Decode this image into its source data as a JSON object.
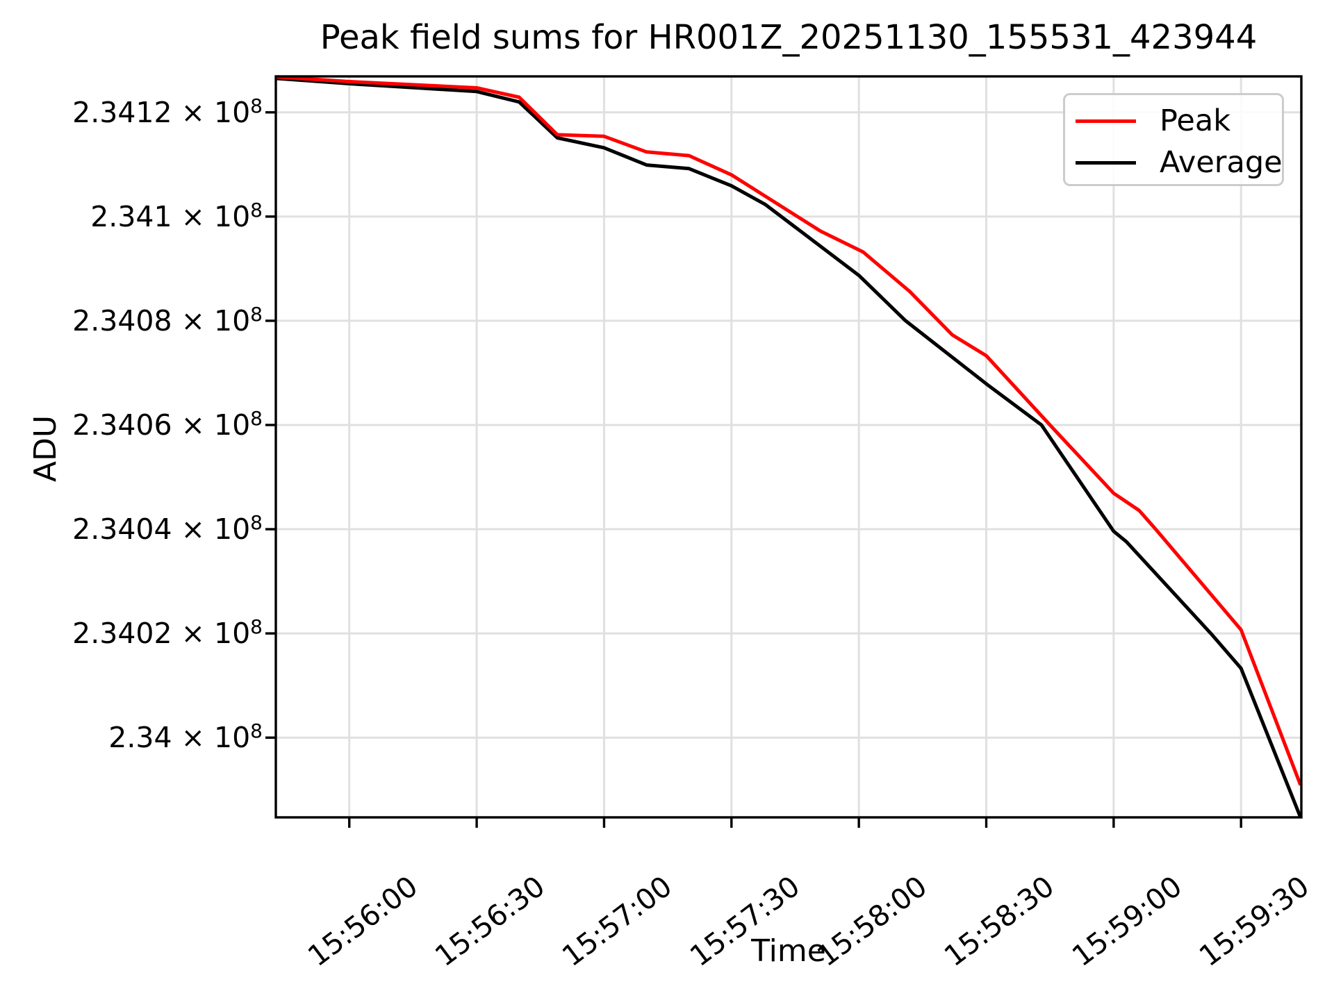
{
  "chart_data": {
    "type": "line",
    "title": "Peak field sums for HR001Z_20251130_155531_423944",
    "xlabel": "Time",
    "ylabel": "ADU",
    "grid": true,
    "legend_position": "upper right",
    "x_axis": {
      "xlim": [
        "15:55:42.7",
        "15:59:44.2"
      ],
      "ticks": [
        "15:56:00",
        "15:56:30",
        "15:57:00",
        "15:57:30",
        "15:58:00",
        "15:58:30",
        "15:59:00",
        "15:59:30"
      ]
    },
    "y_axis": {
      "ylim": [
        233984700,
        234126900
      ],
      "tick_times_symbol": " × 10",
      "tick_exponent": "8",
      "ticks": [
        {
          "value": 234120000,
          "mantissa": "2.3412"
        },
        {
          "value": 234100000,
          "mantissa": "2.341"
        },
        {
          "value": 234080000,
          "mantissa": "2.3408"
        },
        {
          "value": 234060000,
          "mantissa": "2.3406"
        },
        {
          "value": 234040000,
          "mantissa": "2.3404"
        },
        {
          "value": 234020000,
          "mantissa": "2.3402"
        },
        {
          "value": 234000000,
          "mantissa": "2.34"
        }
      ]
    },
    "series": [
      {
        "name": "Peak",
        "color": "#ff0000",
        "points": [
          [
            "15:55:43",
            234126800
          ],
          [
            "15:56:00",
            234125900
          ],
          [
            "15:56:30",
            234124700
          ],
          [
            "15:56:40",
            234122900
          ],
          [
            "15:56:49",
            234115700
          ],
          [
            "15:57:00",
            234115400
          ],
          [
            "15:57:10",
            234112400
          ],
          [
            "15:57:20",
            234111700
          ],
          [
            "15:57:30",
            234108000
          ],
          [
            "15:57:51",
            234097200
          ],
          [
            "15:58:01",
            234093200
          ],
          [
            "15:58:12",
            234085600
          ],
          [
            "15:58:22",
            234077300
          ],
          [
            "15:58:30",
            234073300
          ],
          [
            "15:58:45",
            234060000
          ],
          [
            "15:59:00",
            234046900
          ],
          [
            "15:59:06",
            234043600
          ],
          [
            "15:59:10",
            234039900
          ],
          [
            "15:59:30",
            234020700
          ],
          [
            "15:59:44",
            233990900
          ]
        ]
      },
      {
        "name": "Average",
        "color": "#000000",
        "points": [
          [
            "15:55:43",
            234126500
          ],
          [
            "15:56:00",
            234125500
          ],
          [
            "15:56:30",
            234124000
          ],
          [
            "15:56:40",
            234122000
          ],
          [
            "15:56:49",
            234115100
          ],
          [
            "15:57:00",
            234113200
          ],
          [
            "15:57:10",
            234109900
          ],
          [
            "15:57:20",
            234109200
          ],
          [
            "15:57:30",
            234105900
          ],
          [
            "15:57:38",
            234102300
          ],
          [
            "15:58:00",
            234088700
          ],
          [
            "15:58:11",
            234080000
          ],
          [
            "15:58:30",
            234067900
          ],
          [
            "15:58:43",
            234060000
          ],
          [
            "15:59:00",
            234039600
          ],
          [
            "15:59:03",
            234037600
          ],
          [
            "15:59:23",
            234019900
          ],
          [
            "15:59:30",
            234013300
          ],
          [
            "15:59:44",
            233984700
          ]
        ]
      }
    ]
  },
  "style": {
    "colors": {
      "background": "#ffffff",
      "grid": "#e0e0e0",
      "axis": "#000000",
      "legend_border": "#cccccc",
      "peak_line": "#ff0000",
      "average_line": "#000000"
    }
  }
}
